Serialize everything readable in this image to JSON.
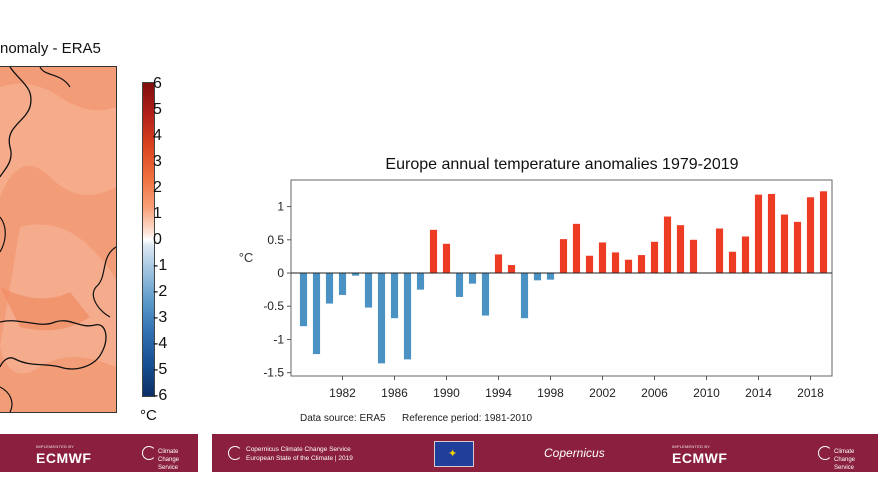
{
  "map": {
    "title": "nomaly - ERA5",
    "colorbar": {
      "labels": [
        "6",
        "5",
        "4",
        "3",
        "2",
        "1",
        "0",
        "-1",
        "-2",
        "-3",
        "-4",
        "-5",
        "-6"
      ],
      "unit": "°C"
    }
  },
  "chart_data": {
    "type": "bar",
    "title": "Europe annual temperature anomalies 1979-2019",
    "xlabel": "",
    "ylabel": "°C",
    "x": [
      1979,
      1980,
      1981,
      1982,
      1983,
      1984,
      1985,
      1986,
      1987,
      1988,
      1989,
      1990,
      1991,
      1992,
      1993,
      1994,
      1995,
      1996,
      1997,
      1998,
      1999,
      2000,
      2001,
      2002,
      2003,
      2004,
      2005,
      2006,
      2007,
      2008,
      2009,
      2010,
      2011,
      2012,
      2013,
      2014,
      2015,
      2016,
      2017,
      2018,
      2019
    ],
    "values": [
      -0.8,
      -1.22,
      -0.46,
      -0.33,
      -0.04,
      -0.52,
      -1.36,
      -0.68,
      -1.3,
      -0.25,
      0.65,
      0.44,
      -0.36,
      -0.16,
      -0.64,
      0.28,
      0.12,
      -0.68,
      -0.11,
      -0.1,
      0.51,
      0.74,
      0.26,
      0.46,
      0.31,
      0.2,
      0.27,
      0.47,
      0.85,
      0.72,
      0.5,
      0.0,
      0.67,
      0.32,
      0.55,
      1.18,
      1.19,
      0.88,
      0.77,
      1.14,
      1.23
    ],
    "x_tick_labels": [
      "1982",
      "1986",
      "1990",
      "1994",
      "1998",
      "2002",
      "2006",
      "2010",
      "2014",
      "2018"
    ],
    "y_tick_labels": [
      "1",
      "0.5",
      "0",
      "-0.5",
      "-1",
      "-1.5"
    ],
    "ylim": [
      -1.55,
      1.4
    ],
    "grid": false,
    "colors": {
      "positive": "#ee3b24",
      "negative": "#4a92c4"
    },
    "source_note": "Data source: ERA5",
    "reference_note": "Reference period: 1981-2010"
  },
  "footer_left": {
    "implemented_by": "IMPLEMENTED BY",
    "ecmwf": "ECMWF",
    "c3s_logo_text": "Climate Change Service"
  },
  "footer_right": {
    "service_line1": "Copernicus Climate Change Service",
    "service_line2": "European State of the Climate | 2019",
    "copernicus": "Copernicus",
    "implemented_by": "IMPLEMENTED BY",
    "ecmwf": "ECMWF",
    "c3s_logo_text": "Climate Change Service"
  }
}
